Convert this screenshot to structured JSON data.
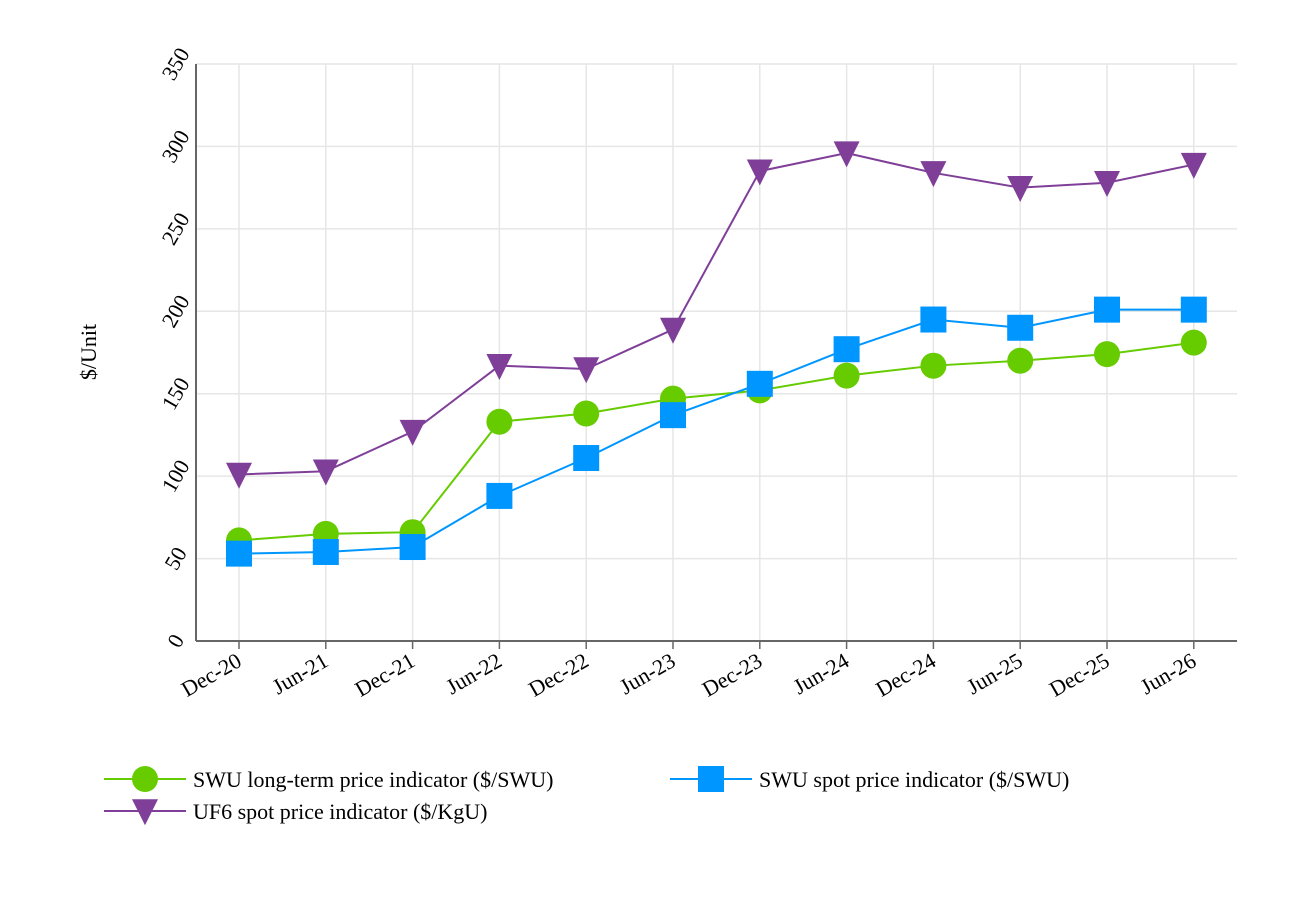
{
  "chart_data": {
    "type": "line",
    "title": "",
    "xlabel": "",
    "ylabel": "$/Unit",
    "categories": [
      "Dec-20",
      "Jun-21",
      "Dec-21",
      "Jun-22",
      "Dec-22",
      "Jun-23",
      "Dec-23",
      "Jun-24",
      "Dec-24",
      "Jun-25",
      "Dec-25",
      "Jun-26"
    ],
    "ylim": [
      0,
      350
    ],
    "yticks": [
      0,
      50,
      100,
      150,
      200,
      250,
      300,
      350
    ],
    "grid": true,
    "legend_position": "bottom",
    "series": [
      {
        "name": "SWU long-term price indicator ($/SWU)",
        "color": "#66cc00",
        "marker": "circle",
        "values": [
          61,
          65,
          66,
          133,
          138,
          147,
          152,
          161,
          167,
          170,
          174,
          181
        ]
      },
      {
        "name": "SWU spot price indicator ($/SWU)",
        "color": "#0096ff",
        "marker": "square",
        "values": [
          53,
          54,
          57,
          88,
          111,
          137,
          156,
          177,
          195,
          190,
          201,
          201
        ]
      },
      {
        "name": "UF6 spot price indicator ($/KgU)",
        "color": "#7f3f98",
        "marker": "triangle-down",
        "values": [
          101,
          103,
          127,
          167,
          165,
          189,
          285,
          296,
          284,
          275,
          278,
          289
        ]
      }
    ]
  }
}
